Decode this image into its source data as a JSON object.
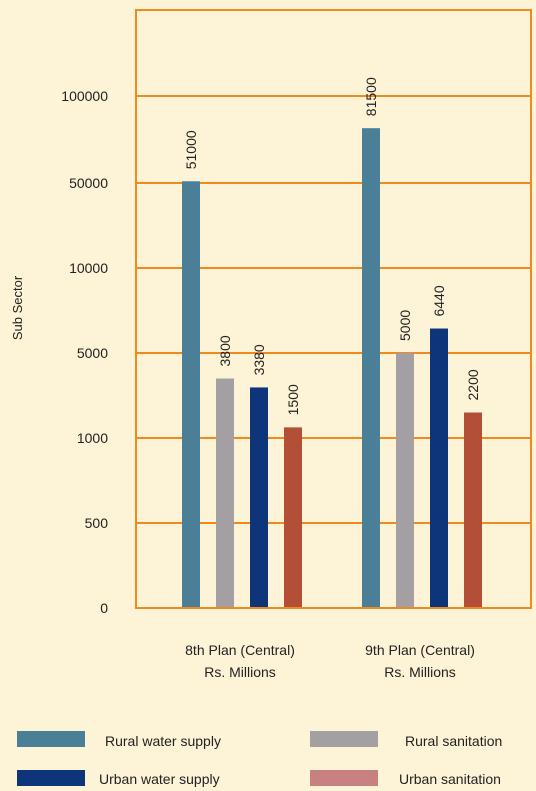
{
  "chart_data": {
    "type": "bar",
    "ylabel": "Sub Sector",
    "y_ticks": [
      "0",
      "500",
      "1000",
      "5000",
      "10000",
      "50000",
      "100000"
    ],
    "categories": [
      {
        "line1": "8th Plan (Central)",
        "line2": "Rs. Millions"
      },
      {
        "line1": "9th Plan (Central)",
        "line2": "Rs. Millions"
      }
    ],
    "series": [
      {
        "name": "Rural water supply",
        "color": "#4b7f98",
        "values": [
          51000,
          81500
        ],
        "labels": [
          "51000",
          "81500"
        ]
      },
      {
        "name": "Rural sanitation",
        "color": "#a39fa3",
        "values": [
          3800,
          5000
        ],
        "labels": [
          "3800",
          "5000"
        ]
      },
      {
        "name": "Urban water supply",
        "color": "#0e357a",
        "values": [
          3380,
          6440
        ],
        "labels": [
          "3380",
          "6440"
        ]
      },
      {
        "name": "Urban sanitation",
        "color": "#b44f37",
        "values": [
          1500,
          2200
        ],
        "labels": [
          "1500",
          "2200"
        ]
      }
    ],
    "legend_swatch_colors": [
      "#4b7f98",
      "#a39fa3",
      "#0e357a",
      "#c98080"
    ],
    "legend_position": "bottom",
    "grid": true,
    "grid_color": "#f08a1d",
    "frame_color": "#f08a1d"
  }
}
